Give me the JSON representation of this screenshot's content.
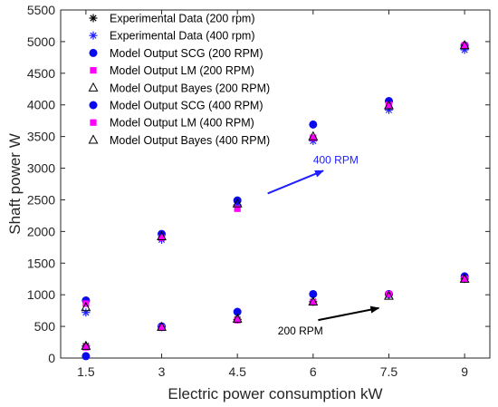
{
  "chart_data": {
    "type": "scatter",
    "xlabel": "Electric power consumption kW",
    "ylabel": "Shaft power W",
    "xlim": [
      1,
      9.5
    ],
    "ylim": [
      0,
      5500
    ],
    "xticks": [
      1.5,
      3,
      4.5,
      6,
      7.5,
      9
    ],
    "yticks": [
      0,
      500,
      1000,
      1500,
      2000,
      2500,
      3000,
      3500,
      4000,
      4500,
      5000,
      5500
    ],
    "grid": false,
    "legend_position": "top-left",
    "series": [
      {
        "name": "Experimental Data (200 rpm)",
        "marker": "star",
        "color": "#000000",
        "x": [
          1.5,
          3,
          4.5,
          6,
          7.5,
          9
        ],
        "y": [
          190,
          490,
          610,
          890,
          1000,
          1250
        ]
      },
      {
        "name": "Experimental Data (400 rpm)",
        "marker": "star",
        "color": "#1f1fff",
        "x": [
          1.5,
          3,
          4.5,
          6,
          7.5,
          9
        ],
        "y": [
          720,
          1870,
          2420,
          3430,
          3920,
          4870
        ]
      },
      {
        "name": "Model Output SCG (200 RPM)",
        "marker": "circle",
        "color": "#0a0aee",
        "x": [
          1.5,
          3,
          4.5,
          6,
          7.5,
          9
        ],
        "y": [
          30,
          500,
          730,
          1010,
          1010,
          1290
        ]
      },
      {
        "name": "Model Output LM (200 RPM)",
        "marker": "square",
        "color": "#ff00ff",
        "x": [
          1.5,
          3,
          4.5,
          6,
          7.5,
          9
        ],
        "y": [
          170,
          480,
          600,
          880,
          1010,
          1250
        ]
      },
      {
        "name": "Model Output Bayes (200 RPM)",
        "marker": "triangle",
        "color": "#000000",
        "x": [
          1.5,
          3,
          4.5,
          6,
          7.5,
          9
        ],
        "y": [
          190,
          490,
          620,
          890,
          980,
          1250
        ]
      },
      {
        "name": "Model Output SCG (400 RPM)",
        "marker": "circle",
        "color": "#0a0aee",
        "x": [
          1.5,
          3,
          4.5,
          6,
          7.5,
          9
        ],
        "y": [
          910,
          1960,
          2490,
          3690,
          4060,
          4940
        ]
      },
      {
        "name": "Model Output LM (400 RPM)",
        "marker": "square",
        "color": "#ff00ff",
        "x": [
          1.5,
          3,
          4.5,
          6,
          7.5,
          9
        ],
        "y": [
          860,
          1900,
          2360,
          3480,
          4000,
          4940
        ]
      },
      {
        "name": "Model Output Bayes (400 RPM)",
        "marker": "triangle",
        "color": "#000000",
        "x": [
          1.5,
          3,
          4.5,
          6,
          7.5,
          9
        ],
        "y": [
          800,
          1920,
          2440,
          3500,
          3990,
          4940
        ]
      }
    ],
    "annotations": [
      {
        "text": "400 RPM",
        "color": "#1f1fff",
        "arrow_from": [
          5.1,
          2600
        ],
        "arrow_to": [
          6.2,
          2960
        ],
        "text_at": [
          6,
          3070
        ]
      },
      {
        "text": "200 RPM",
        "color": "#000000",
        "arrow_from": [
          6.1,
          600
        ],
        "arrow_to": [
          7.3,
          790
        ],
        "text_at": [
          5.3,
          370
        ]
      }
    ]
  }
}
